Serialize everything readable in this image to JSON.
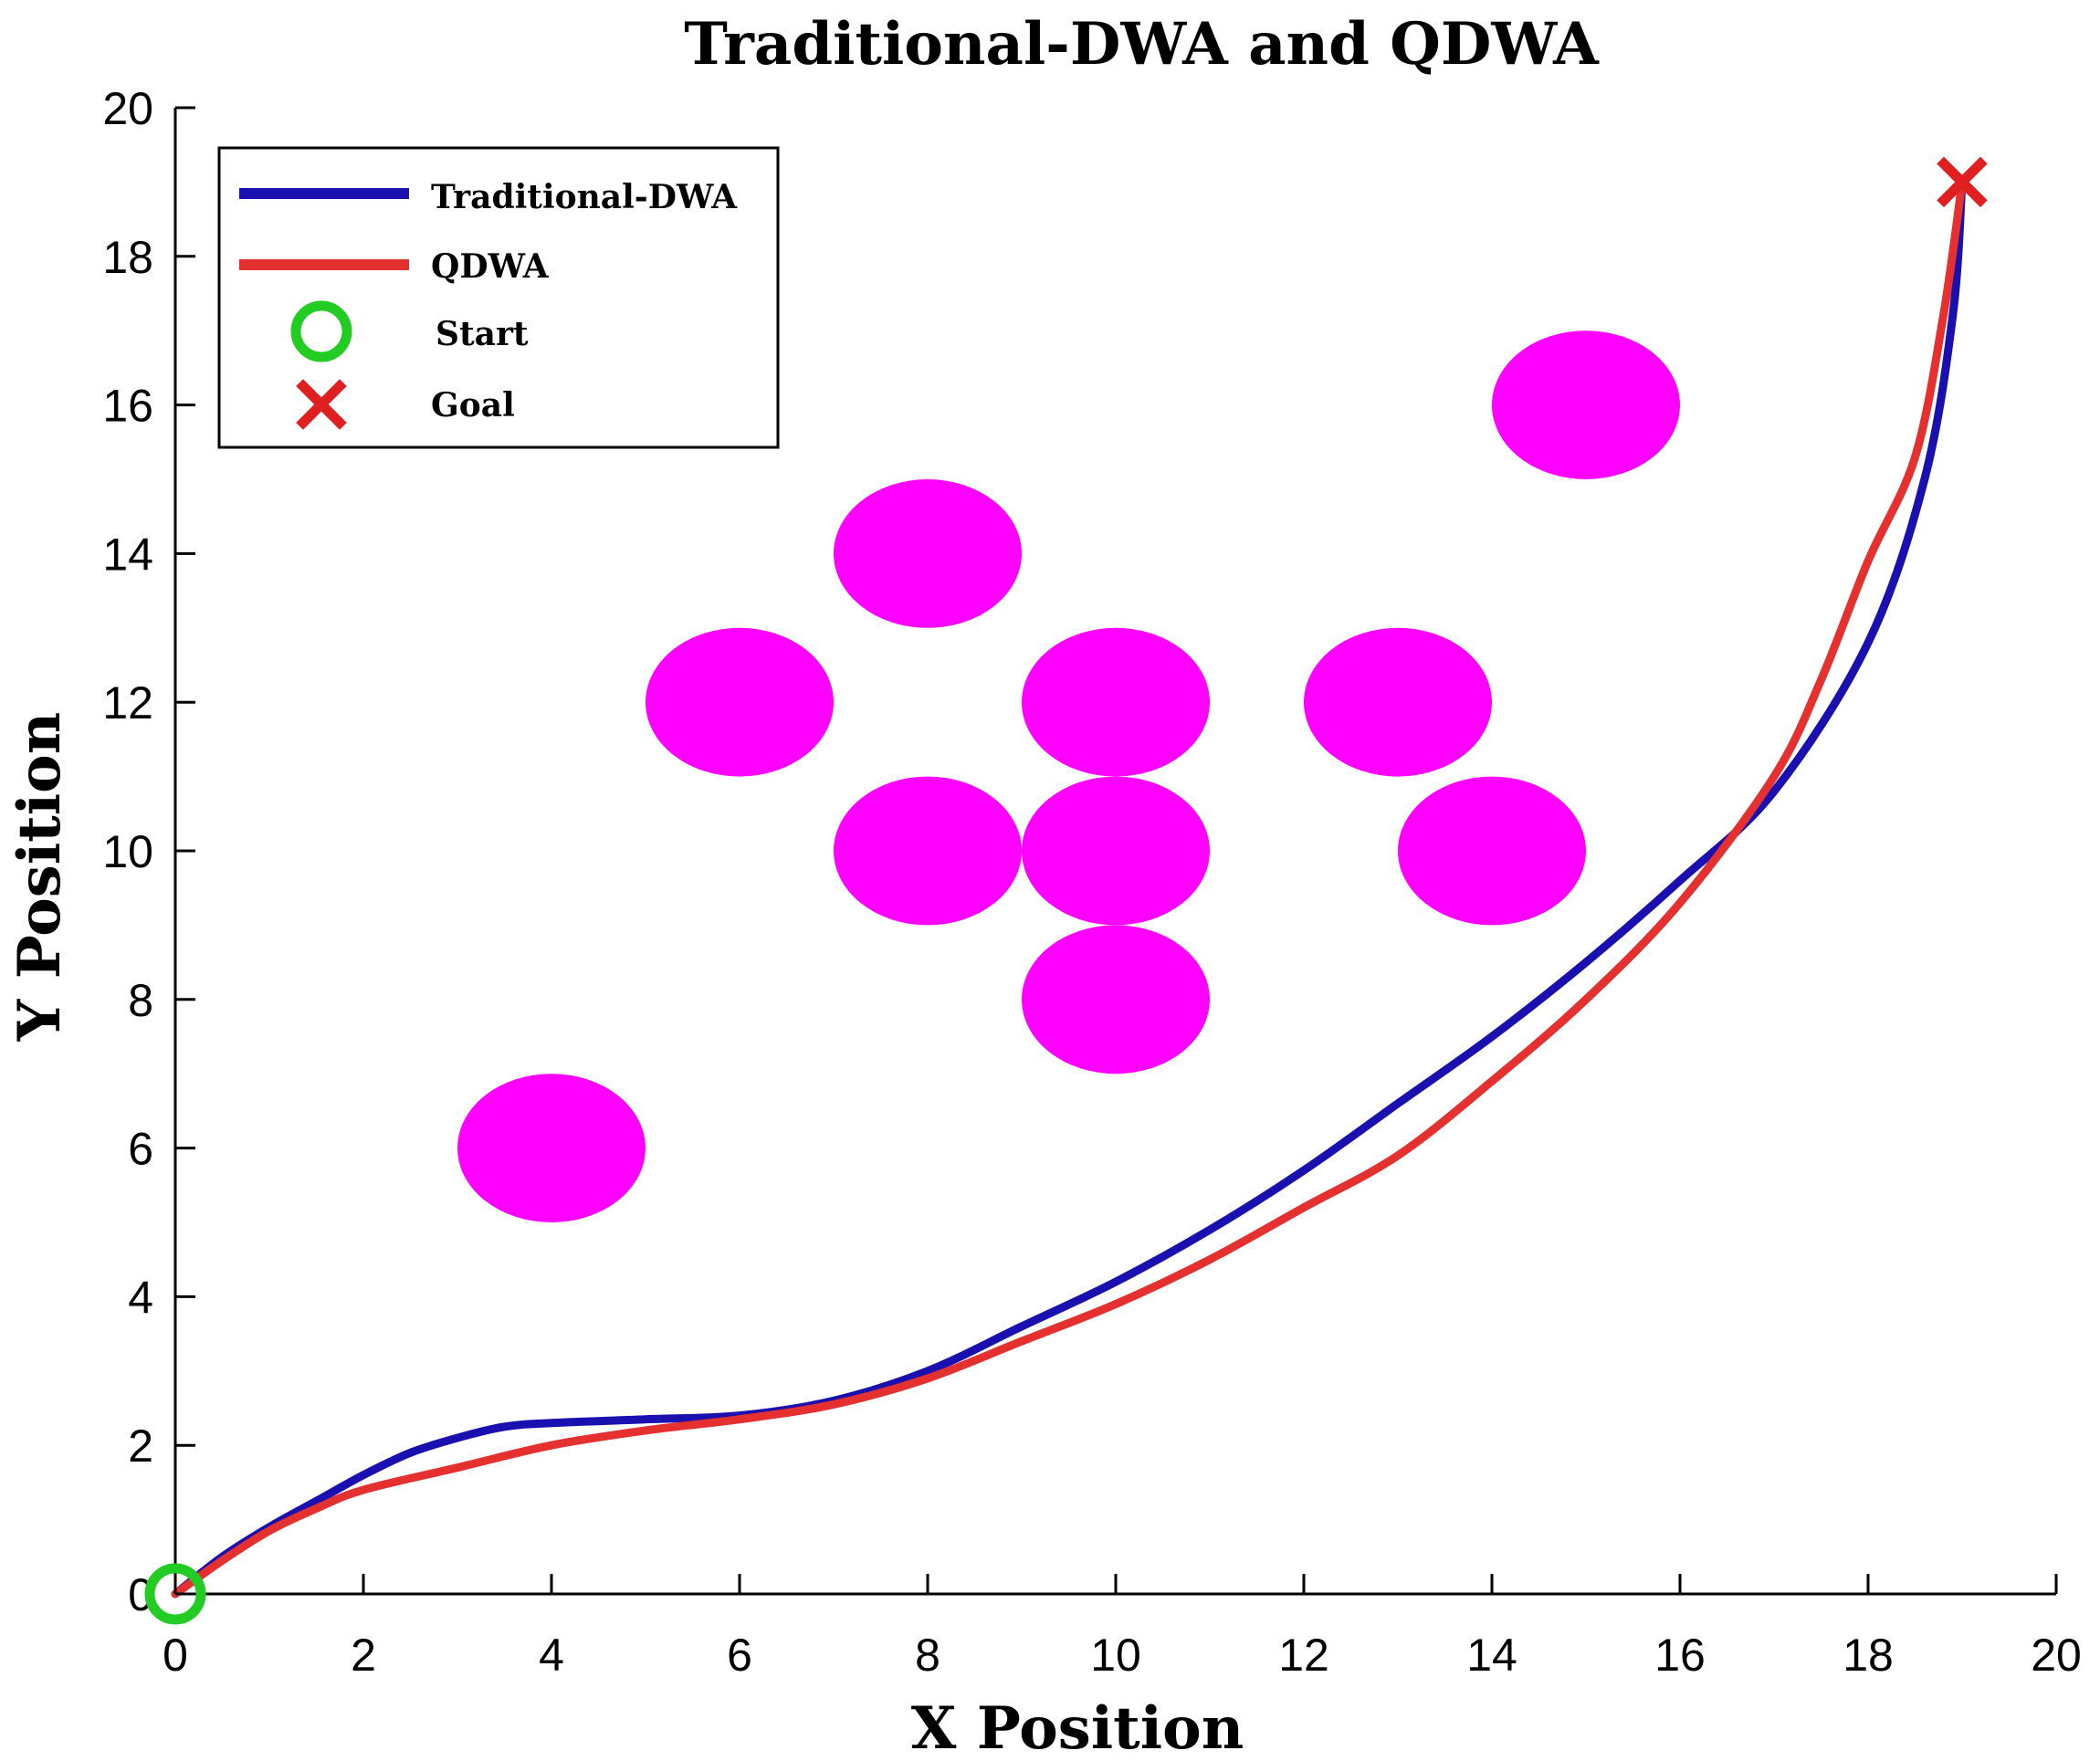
{
  "chart_data": {
    "type": "line",
    "title": "Traditional-DWA and QDWA",
    "xlabel": "X Position",
    "ylabel": "Y Position",
    "xlim": [
      0,
      20
    ],
    "ylim": [
      0,
      20
    ],
    "xticks": [
      "0",
      "2",
      "4",
      "6",
      "8",
      "10",
      "12",
      "14",
      "16",
      "18",
      "20"
    ],
    "yticks": [
      "0",
      "2",
      "4",
      "6",
      "8",
      "10",
      "12",
      "14",
      "16",
      "18",
      "20"
    ],
    "grid": false,
    "legend_position": "top-left",
    "series": [
      {
        "name": "Traditional-DWA",
        "color": "#1a10b0",
        "points": [
          [
            0,
            0
          ],
          [
            0.5,
            0.5
          ],
          [
            1,
            0.9
          ],
          [
            1.5,
            1.25
          ],
          [
            2,
            1.6
          ],
          [
            2.5,
            1.9
          ],
          [
            3,
            2.1
          ],
          [
            3.5,
            2.25
          ],
          [
            4,
            2.3
          ],
          [
            5,
            2.35
          ],
          [
            6,
            2.4
          ],
          [
            7,
            2.6
          ],
          [
            8,
            3.0
          ],
          [
            9,
            3.6
          ],
          [
            10,
            4.2
          ],
          [
            11,
            4.9
          ],
          [
            12,
            5.7
          ],
          [
            13,
            6.6
          ],
          [
            14,
            7.5
          ],
          [
            15,
            8.5
          ],
          [
            16,
            9.6
          ],
          [
            17,
            10.8
          ],
          [
            18,
            12.8
          ],
          [
            18.6,
            15.0
          ],
          [
            18.9,
            17.2
          ],
          [
            19,
            19
          ]
        ]
      },
      {
        "name": "QDWA",
        "color": "#e53030",
        "points": [
          [
            0,
            0
          ],
          [
            0.5,
            0.45
          ],
          [
            1,
            0.85
          ],
          [
            1.5,
            1.15
          ],
          [
            2,
            1.4
          ],
          [
            3,
            1.7
          ],
          [
            4,
            2.0
          ],
          [
            5,
            2.2
          ],
          [
            6,
            2.35
          ],
          [
            7,
            2.55
          ],
          [
            8,
            2.9
          ],
          [
            9,
            3.4
          ],
          [
            10,
            3.9
          ],
          [
            11,
            4.5
          ],
          [
            12,
            5.2
          ],
          [
            13,
            5.9
          ],
          [
            14,
            6.9
          ],
          [
            15,
            8.0
          ],
          [
            16,
            9.3
          ],
          [
            17,
            11.0
          ],
          [
            17.5,
            12.3
          ],
          [
            18,
            13.9
          ],
          [
            18.5,
            15.3
          ],
          [
            18.8,
            17.2
          ],
          [
            19,
            19
          ]
        ]
      }
    ],
    "obstacles": [
      {
        "x": 4,
        "y": 6,
        "r": 1
      },
      {
        "x": 6,
        "y": 12,
        "r": 1
      },
      {
        "x": 8,
        "y": 14,
        "r": 1
      },
      {
        "x": 8,
        "y": 10,
        "r": 1
      },
      {
        "x": 10,
        "y": 12,
        "r": 1
      },
      {
        "x": 10,
        "y": 10,
        "r": 1
      },
      {
        "x": 10,
        "y": 8,
        "r": 1
      },
      {
        "x": 13,
        "y": 12,
        "r": 1
      },
      {
        "x": 14,
        "y": 10,
        "r": 1
      },
      {
        "x": 15,
        "y": 16,
        "r": 1
      }
    ],
    "obstacle_color": "#ff00ff",
    "start": {
      "x": 0,
      "y": 0,
      "label": "Start",
      "color": "#22cc22"
    },
    "goal": {
      "x": 19,
      "y": 19,
      "label": "Goal",
      "color": "#e02020"
    },
    "legend": [
      "Traditional-DWA",
      "QDWA",
      "Start",
      "Goal"
    ]
  }
}
